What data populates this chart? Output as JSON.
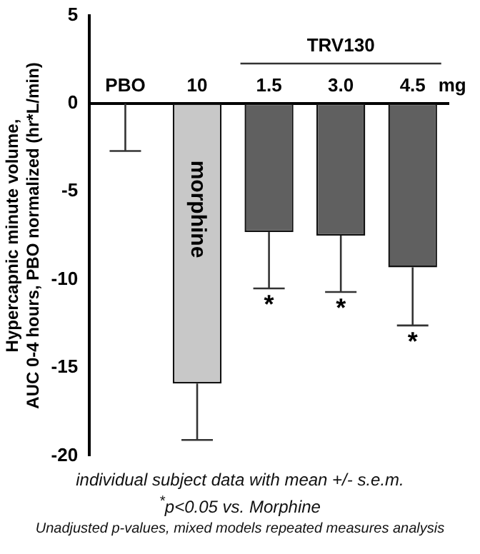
{
  "chart_data": {
    "type": "bar",
    "ylabel": "Hypercapnic minute volume,\nAUC 0-4 hours, PBO normalized (hr*L/min)",
    "categories": [
      "PBO",
      "10",
      "1.5",
      "3.0",
      "4.5"
    ],
    "values": [
      0,
      -15.9,
      -7.3,
      -7.5,
      -9.3
    ],
    "colors": [
      "#d0d0d0",
      "#c8c8c8",
      "#606060",
      "#606060",
      "#606060"
    ],
    "errors": [
      [
        -2.7,
        0
      ],
      [
        -19.1,
        -15.9
      ],
      [
        -10.5,
        -7.3
      ],
      [
        -10.7,
        -7.5
      ],
      [
        -12.6,
        -9.3
      ]
    ],
    "ylim": [
      -20,
      5
    ],
    "yticks": [
      -20,
      -15,
      -10,
      -5,
      0,
      5
    ],
    "grid": false,
    "annotations": [
      "mg",
      "TRV130",
      "morphine",
      "*",
      "*",
      "*",
      "individual subject data with mean +/- s.e.m.",
      "$^{*}$p<0.05 vs. Morphine",
      "Unadjusted p-values, mixed models repeated measures analysis"
    ]
  }
}
